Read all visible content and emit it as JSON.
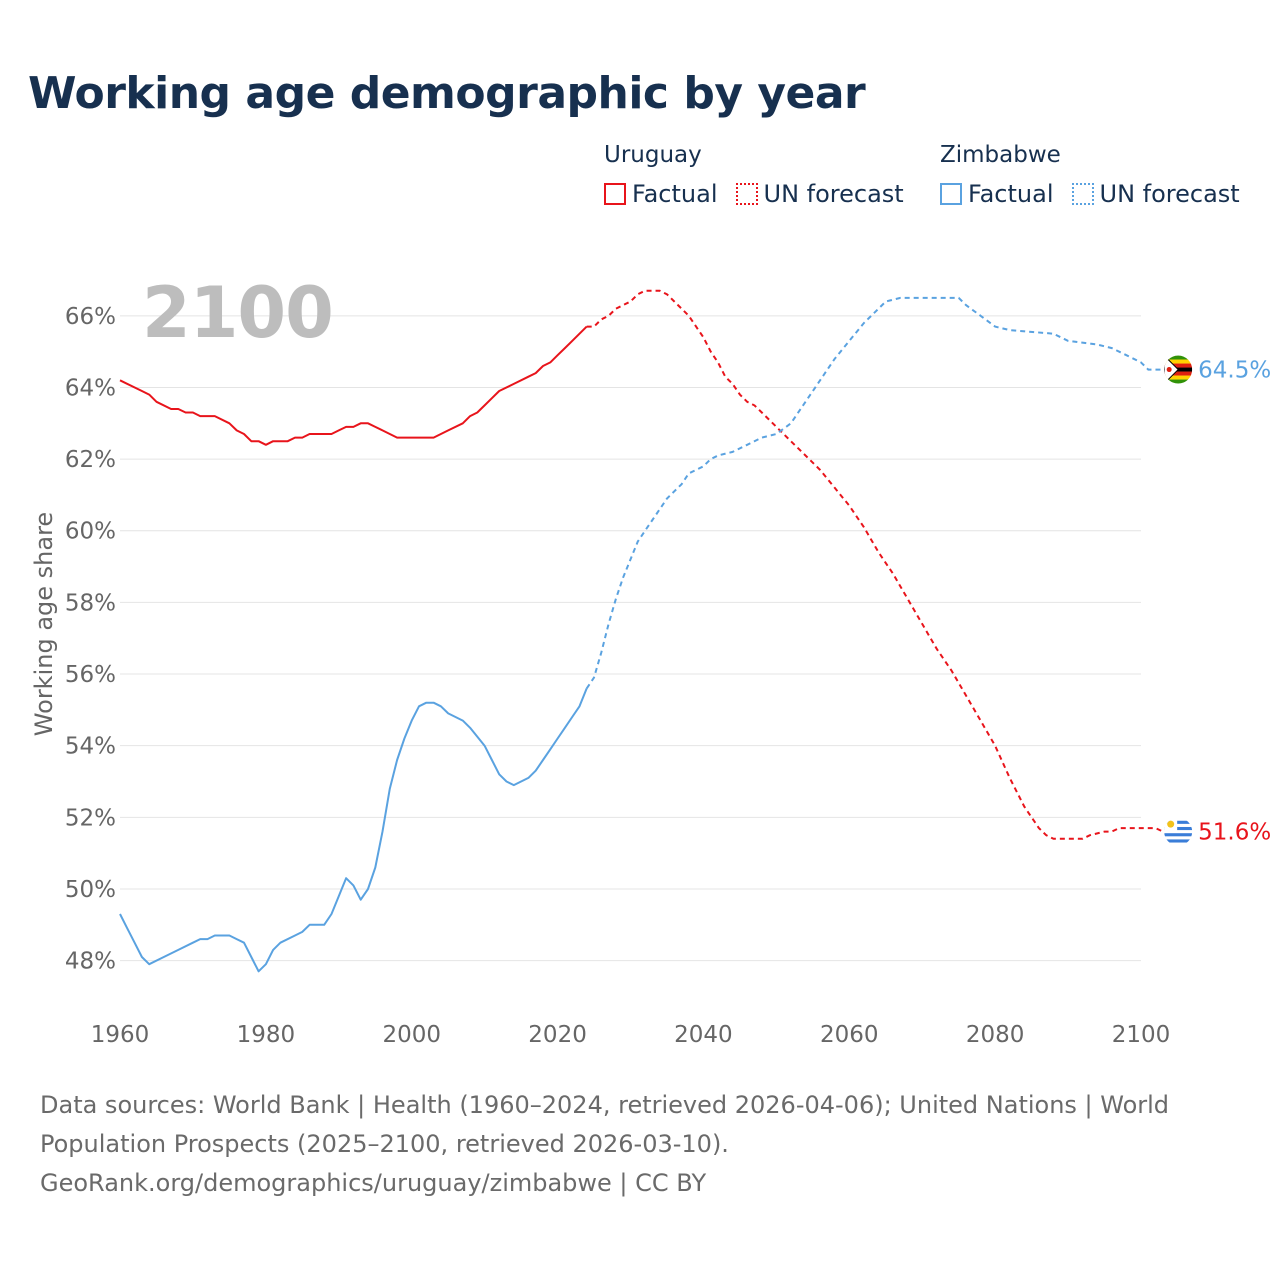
{
  "title": "Working age demographic by year",
  "legend": {
    "uruguay": {
      "country": "Uruguay",
      "factual": "Factual",
      "forecast": "UN forecast",
      "color": "#e8141b"
    },
    "zimbabwe": {
      "country": "Zimbabwe",
      "factual": "Factual",
      "forecast": "UN forecast",
      "color": "#5aa2e0"
    }
  },
  "year_display": "2100",
  "chart_data": {
    "type": "line",
    "title": "Working age demographic by year",
    "xlabel": "",
    "ylabel": "Working age share",
    "xlim": [
      1960,
      2100
    ],
    "ylim": [
      46.9,
      67.0
    ],
    "x_ticks": [
      1960,
      1980,
      2000,
      2020,
      2040,
      2060,
      2080,
      2100
    ],
    "y_ticks": [
      48,
      50,
      52,
      54,
      56,
      58,
      60,
      62,
      64,
      66
    ],
    "y_tick_suffix": "%",
    "factual_end_year": 2024,
    "series": [
      {
        "name": "Uruguay",
        "color": "#e8141b",
        "end_label": "51.6%",
        "points": [
          [
            1960,
            64.2
          ],
          [
            1963,
            63.9
          ],
          [
            1964,
            63.8
          ],
          [
            1965,
            63.6
          ],
          [
            1967,
            63.4
          ],
          [
            1968,
            63.4
          ],
          [
            1969,
            63.3
          ],
          [
            1970,
            63.3
          ],
          [
            1971,
            63.2
          ],
          [
            1973,
            63.2
          ],
          [
            1975,
            63.0
          ],
          [
            1976,
            62.8
          ],
          [
            1977,
            62.7
          ],
          [
            1978,
            62.5
          ],
          [
            1979,
            62.5
          ],
          [
            1980,
            62.4
          ],
          [
            1981,
            62.5
          ],
          [
            1983,
            62.5
          ],
          [
            1984,
            62.6
          ],
          [
            1985,
            62.6
          ],
          [
            1986,
            62.7
          ],
          [
            1989,
            62.7
          ],
          [
            1990,
            62.8
          ],
          [
            1991,
            62.9
          ],
          [
            1992,
            62.9
          ],
          [
            1993,
            63.0
          ],
          [
            1994,
            63.0
          ],
          [
            1995,
            62.9
          ],
          [
            1996,
            62.8
          ],
          [
            1997,
            62.7
          ],
          [
            1998,
            62.6
          ],
          [
            2003,
            62.6
          ],
          [
            2005,
            62.8
          ],
          [
            2007,
            63.0
          ],
          [
            2008,
            63.2
          ],
          [
            2009,
            63.3
          ],
          [
            2010,
            63.5
          ],
          [
            2011,
            63.7
          ],
          [
            2012,
            63.9
          ],
          [
            2014,
            64.1
          ],
          [
            2016,
            64.3
          ],
          [
            2017,
            64.4
          ],
          [
            2018,
            64.6
          ],
          [
            2019,
            64.7
          ],
          [
            2020,
            64.9
          ],
          [
            2021,
            65.1
          ],
          [
            2022,
            65.3
          ],
          [
            2023,
            65.5
          ],
          [
            2024,
            65.7
          ],
          [
            2025,
            65.7
          ],
          [
            2026,
            65.9
          ],
          [
            2027,
            66.0
          ],
          [
            2028,
            66.2
          ],
          [
            2029,
            66.3
          ],
          [
            2030,
            66.4
          ],
          [
            2031,
            66.6
          ],
          [
            2032,
            66.7
          ],
          [
            2033,
            66.7
          ],
          [
            2034,
            66.7
          ],
          [
            2035,
            66.6
          ],
          [
            2036,
            66.4
          ],
          [
            2037,
            66.2
          ],
          [
            2038,
            66.0
          ],
          [
            2039,
            65.7
          ],
          [
            2040,
            65.4
          ],
          [
            2041,
            65.0
          ],
          [
            2042,
            64.7
          ],
          [
            2043,
            64.3
          ],
          [
            2044,
            64.1
          ],
          [
            2045,
            63.8
          ],
          [
            2046,
            63.6
          ],
          [
            2047,
            63.5
          ],
          [
            2048,
            63.3
          ],
          [
            2049,
            63.1
          ],
          [
            2050,
            62.9
          ],
          [
            2052,
            62.5
          ],
          [
            2054,
            62.1
          ],
          [
            2056,
            61.7
          ],
          [
            2058,
            61.2
          ],
          [
            2060,
            60.7
          ],
          [
            2062,
            60.1
          ],
          [
            2064,
            59.4
          ],
          [
            2066,
            58.8
          ],
          [
            2068,
            58.1
          ],
          [
            2070,
            57.4
          ],
          [
            2072,
            56.7
          ],
          [
            2074,
            56.1
          ],
          [
            2076,
            55.4
          ],
          [
            2078,
            54.7
          ],
          [
            2080,
            54.0
          ],
          [
            2082,
            53.1
          ],
          [
            2084,
            52.3
          ],
          [
            2086,
            51.7
          ],
          [
            2087,
            51.5
          ],
          [
            2088,
            51.4
          ],
          [
            2092,
            51.4
          ],
          [
            2093,
            51.5
          ],
          [
            2095,
            51.6
          ],
          [
            2096,
            51.6
          ],
          [
            2097,
            51.7
          ],
          [
            2102,
            51.7
          ],
          [
            2103,
            51.6
          ],
          [
            2104,
            51.6
          ]
        ]
      },
      {
        "name": "Zimbabwe",
        "color": "#5aa2e0",
        "end_label": "64.5%",
        "points": [
          [
            1960,
            49.3
          ],
          [
            1961,
            48.9
          ],
          [
            1962,
            48.5
          ],
          [
            1963,
            48.1
          ],
          [
            1964,
            47.9
          ],
          [
            1966,
            48.1
          ],
          [
            1968,
            48.3
          ],
          [
            1970,
            48.5
          ],
          [
            1971,
            48.6
          ],
          [
            1972,
            48.6
          ],
          [
            1973,
            48.7
          ],
          [
            1975,
            48.7
          ],
          [
            1976,
            48.6
          ],
          [
            1977,
            48.5
          ],
          [
            1978,
            48.1
          ],
          [
            1979,
            47.7
          ],
          [
            1980,
            47.9
          ],
          [
            1981,
            48.3
          ],
          [
            1982,
            48.5
          ],
          [
            1984,
            48.7
          ],
          [
            1985,
            48.8
          ],
          [
            1986,
            49.0
          ],
          [
            1988,
            49.0
          ],
          [
            1989,
            49.3
          ],
          [
            1990,
            49.8
          ],
          [
            1991,
            50.3
          ],
          [
            1992,
            50.1
          ],
          [
            1993,
            49.7
          ],
          [
            1994,
            50.0
          ],
          [
            1995,
            50.6
          ],
          [
            1996,
            51.6
          ],
          [
            1997,
            52.8
          ],
          [
            1998,
            53.6
          ],
          [
            1999,
            54.2
          ],
          [
            2000,
            54.7
          ],
          [
            2001,
            55.1
          ],
          [
            2002,
            55.2
          ],
          [
            2003,
            55.2
          ],
          [
            2004,
            55.1
          ],
          [
            2005,
            54.9
          ],
          [
            2006,
            54.8
          ],
          [
            2007,
            54.7
          ],
          [
            2008,
            54.5
          ],
          [
            2010,
            54.0
          ],
          [
            2011,
            53.6
          ],
          [
            2012,
            53.2
          ],
          [
            2013,
            53.0
          ],
          [
            2014,
            52.9
          ],
          [
            2015,
            53.0
          ],
          [
            2016,
            53.1
          ],
          [
            2017,
            53.3
          ],
          [
            2018,
            53.6
          ],
          [
            2019,
            53.9
          ],
          [
            2020,
            54.2
          ],
          [
            2021,
            54.5
          ],
          [
            2022,
            54.8
          ],
          [
            2023,
            55.1
          ],
          [
            2024,
            55.6
          ],
          [
            2025,
            55.9
          ],
          [
            2026,
            56.6
          ],
          [
            2027,
            57.4
          ],
          [
            2028,
            58.1
          ],
          [
            2029,
            58.7
          ],
          [
            2030,
            59.2
          ],
          [
            2031,
            59.7
          ],
          [
            2032,
            60.0
          ],
          [
            2033,
            60.3
          ],
          [
            2034,
            60.6
          ],
          [
            2035,
            60.9
          ],
          [
            2036,
            61.1
          ],
          [
            2037,
            61.3
          ],
          [
            2038,
            61.6
          ],
          [
            2039,
            61.7
          ],
          [
            2040,
            61.8
          ],
          [
            2041,
            62.0
          ],
          [
            2042,
            62.1
          ],
          [
            2044,
            62.2
          ],
          [
            2046,
            62.4
          ],
          [
            2048,
            62.6
          ],
          [
            2050,
            62.7
          ],
          [
            2052,
            63.0
          ],
          [
            2054,
            63.6
          ],
          [
            2056,
            64.2
          ],
          [
            2058,
            64.8
          ],
          [
            2060,
            65.3
          ],
          [
            2062,
            65.8
          ],
          [
            2064,
            66.2
          ],
          [
            2065,
            66.4
          ],
          [
            2067,
            66.5
          ],
          [
            2075,
            66.5
          ],
          [
            2076,
            66.3
          ],
          [
            2078,
            66.0
          ],
          [
            2080,
            65.7
          ],
          [
            2082,
            65.6
          ],
          [
            2088,
            65.5
          ],
          [
            2090,
            65.3
          ],
          [
            2094,
            65.2
          ],
          [
            2096,
            65.1
          ],
          [
            2098,
            64.9
          ],
          [
            2100,
            64.7
          ],
          [
            2101,
            64.5
          ],
          [
            2104,
            64.5
          ]
        ]
      }
    ]
  },
  "source": {
    "line1": "Data sources: World Bank | Health (1960–2024, retrieved 2026-04-06); United Nations | World Population Prospects (2025–2100, retrieved 2026-03-10).",
    "line2": "GeoRank.org/demographics/uruguay/zimbabwe | CC BY"
  }
}
